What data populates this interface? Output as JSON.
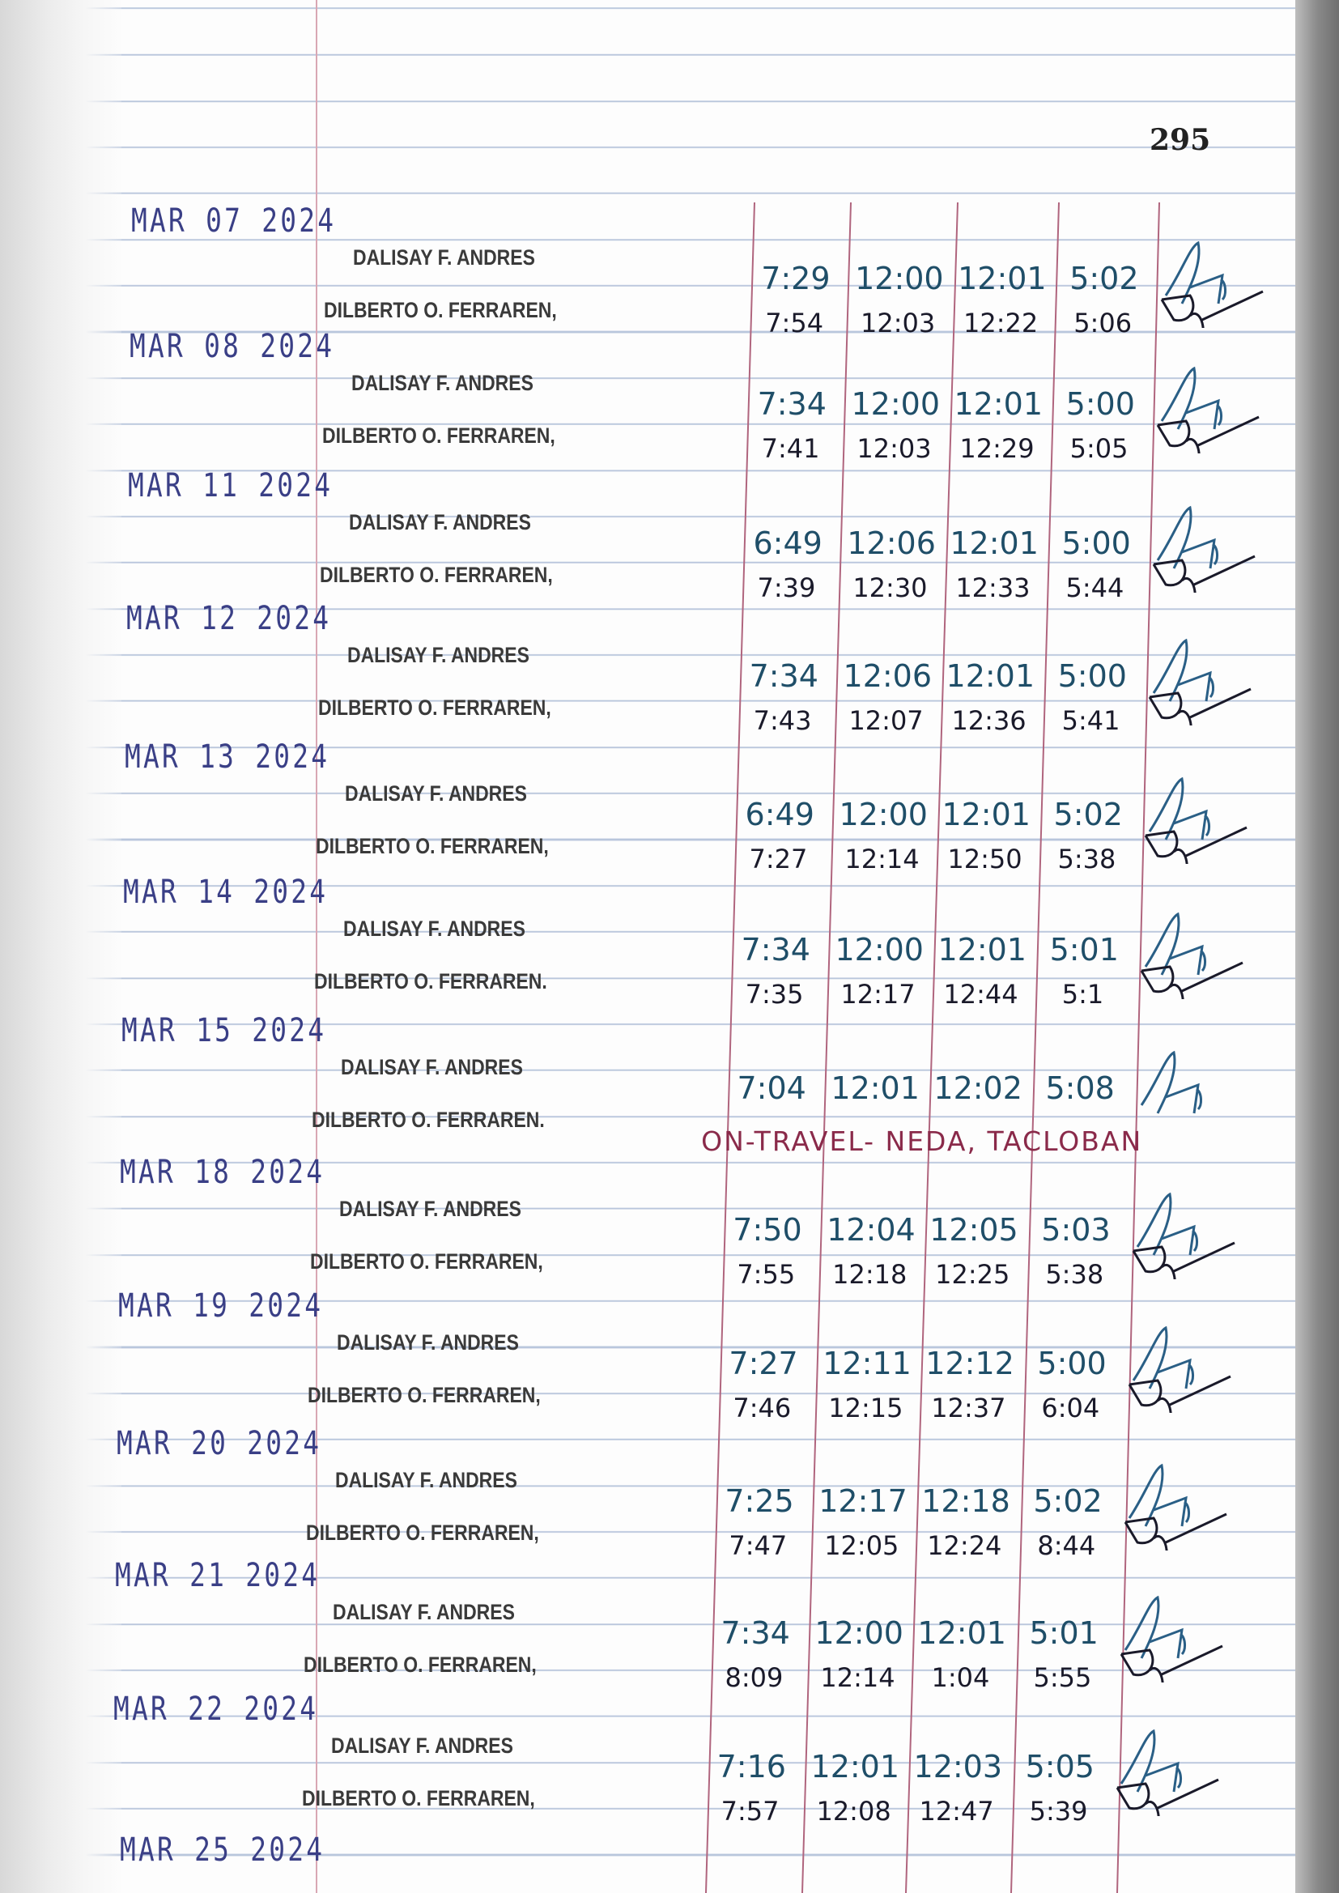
{
  "page_number": "295",
  "note_color": "#8a2a4a",
  "stamp_color": "#3a3f86",
  "entries": [
    {
      "date": "MAR 07 2024",
      "names": [
        "DALISAY F. ANDRES",
        "DILBERTO O. FERRAREN,"
      ],
      "times": [
        [
          "7:29",
          "12:00",
          "12:01",
          "5:02"
        ],
        [
          "7:54",
          "12:03",
          "12:22",
          "5:06"
        ]
      ]
    },
    {
      "date": "MAR 08 2024",
      "names": [
        "DALISAY F. ANDRES",
        "DILBERTO O. FERRAREN,"
      ],
      "times": [
        [
          "7:34",
          "12:00",
          "12:01",
          "5:00"
        ],
        [
          "7:41",
          "12:03",
          "12:29",
          "5:05"
        ]
      ]
    },
    {
      "date": "MAR 11 2024",
      "names": [
        "DALISAY F. ANDRES",
        "DILBERTO O. FERRAREN,"
      ],
      "times": [
        [
          "6:49",
          "12:06",
          "12:01",
          "5:00"
        ],
        [
          "7:39",
          "12:30",
          "12:33",
          "5:44"
        ]
      ]
    },
    {
      "date": "MAR 12 2024",
      "names": [
        "DALISAY F. ANDRES",
        "DILBERTO O. FERRAREN,"
      ],
      "times": [
        [
          "7:34",
          "12:06",
          "12:01",
          "5:00"
        ],
        [
          "7:43",
          "12:07",
          "12:36",
          "5:41"
        ]
      ]
    },
    {
      "date": "MAR 13 2024",
      "names": [
        "DALISAY F. ANDRES",
        "DILBERTO O. FERRAREN,"
      ],
      "times": [
        [
          "6:49",
          "12:00",
          "12:01",
          "5:02"
        ],
        [
          "7:27",
          "12:14",
          "12:50",
          "5:38"
        ]
      ]
    },
    {
      "date": "MAR 14 2024",
      "names": [
        "DALISAY F. ANDRES",
        "DILBERTO O. FERRAREN."
      ],
      "times": [
        [
          "7:34",
          "12:00",
          "12:01",
          "5:01"
        ],
        [
          "7:35",
          "12:17",
          "12:44",
          "5:1"
        ]
      ]
    },
    {
      "date": "MAR 15 2024",
      "names": [
        "DALISAY F. ANDRES",
        "DILBERTO O. FERRAREN."
      ],
      "times": [
        [
          "7:04",
          "12:01",
          "12:02",
          "5:08"
        ]
      ],
      "note": "ON-TRAVEL- NEDA, TACLOBAN"
    },
    {
      "date": "MAR 18 2024",
      "names": [
        "DALISAY F. ANDRES",
        "DILBERTO O. FERRAREN,"
      ],
      "times": [
        [
          "7:50",
          "12:04",
          "12:05",
          "5:03"
        ],
        [
          "7:55",
          "12:18",
          "12:25",
          "5:38"
        ]
      ]
    },
    {
      "date": "MAR 19 2024",
      "names": [
        "DALISAY F. ANDRES",
        "DILBERTO O. FERRAREN,"
      ],
      "times": [
        [
          "7:27",
          "12:11",
          "12:12",
          "5:00"
        ],
        [
          "7:46",
          "12:15",
          "12:37",
          "6:04"
        ]
      ]
    },
    {
      "date": "MAR 20 2024",
      "names": [
        "DALISAY F. ANDRES",
        "DILBERTO O. FERRAREN,"
      ],
      "times": [
        [
          "7:25",
          "12:17",
          "12:18",
          "5:02"
        ],
        [
          "7:47",
          "12:05",
          "12:24",
          "8:44"
        ]
      ]
    },
    {
      "date": "MAR 21 2024",
      "names": [
        "DALISAY F. ANDRES",
        "DILBERTO O. FERRAREN,"
      ],
      "times": [
        [
          "7:34",
          "12:00",
          "12:01",
          "5:01"
        ],
        [
          "8:09",
          "12:14",
          "1:04",
          "5:55"
        ]
      ]
    },
    {
      "date": "MAR 22 2024",
      "names": [
        "DALISAY F. ANDRES",
        "DILBERTO O. FERRAREN,"
      ],
      "times": [
        [
          "7:16",
          "12:01",
          "12:03",
          "5:05"
        ],
        [
          "7:57",
          "12:08",
          "12:47",
          "5:39"
        ]
      ]
    }
  ],
  "last_date": "MAR 25 2024"
}
